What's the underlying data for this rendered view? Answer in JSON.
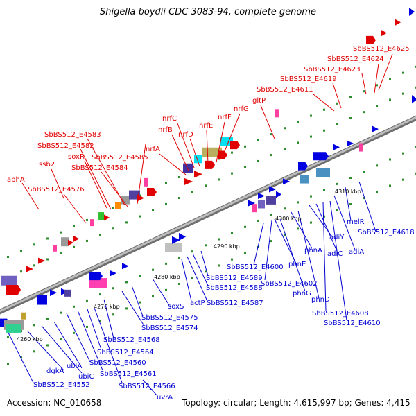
{
  "title": "Shigella boydii CDC 3083-94, complete genome",
  "footer": {
    "accession": "Accession: NC_010658",
    "summary": "Topology: circular; Length: 4,615,997 bp; Genes: 4,415"
  },
  "scale_labels": [
    "4260 kbp",
    "4270 kbp",
    "4280 kbp",
    "4290 kbp",
    "4300 kbp",
    "4310 kbp"
  ],
  "top_labels": [
    "aphA",
    "ssb2",
    "SbBS512_E4576",
    "SbBS512_E4582",
    "SbBS512_E4583",
    "soxR",
    "SbBS512_E4584",
    "SbBS512_E4585",
    "nrfA",
    "nrfB",
    "nrfC",
    "nrfD",
    "nrfE",
    "nrfF",
    "nrfG",
    "gltP",
    "SbBS512_E4611",
    "SbBS512_E4619",
    "SbBS512_E4623",
    "SbBS512_E4624",
    "SbBS512_E4625"
  ],
  "bottom_labels": [
    "SbBS512_E4552",
    "dgkA",
    "ubiC",
    "ubiA",
    "SbBS512_E4560",
    "SbBS512_E4561",
    "SbBS512_E4564",
    "SbBS512_E4566",
    "uvrA",
    "SbBS512_E4568",
    "SbBS512_E4574",
    "SbBS512_E4575",
    "soxS",
    "actP",
    "SbBS512_E4587",
    "SbBS512_E4588",
    "SbBS512_E4589",
    "SbBS512_E4600",
    "SbBS512_E4602",
    "phnE",
    "phnG",
    "phnA",
    "phnD",
    "adiY",
    "adiC",
    "SbBS512_E4608",
    "SbBS512_E4610",
    "adiA",
    "melR",
    "SbBS512_E4618"
  ],
  "colors": {
    "top_label": "#e00000",
    "bottom_label": "#0000d0",
    "backbone": "#9a9a9a",
    "tick_dot": "#2e8b2e"
  }
}
